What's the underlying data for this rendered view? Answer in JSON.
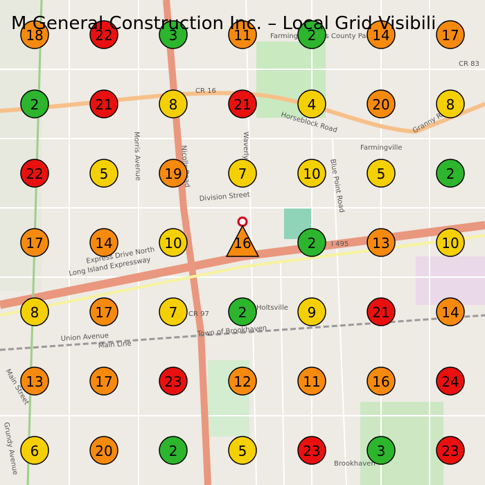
{
  "title": "M General Construction Inc. – Local Grid Visibili",
  "grid": {
    "rows": [
      [
        18,
        22,
        3,
        11,
        2,
        14,
        17
      ],
      [
        2,
        21,
        8,
        21,
        4,
        20,
        8
      ],
      [
        22,
        5,
        19,
        7,
        10,
        5,
        2
      ],
      [
        17,
        14,
        10,
        16,
        2,
        13,
        10
      ],
      [
        8,
        17,
        7,
        2,
        9,
        21,
        14
      ],
      [
        13,
        17,
        23,
        12,
        11,
        16,
        24
      ],
      [
        6,
        20,
        2,
        5,
        23,
        3,
        23
      ]
    ]
  },
  "map_labels": [
    "CR 16",
    "CR 83",
    "CR 97",
    "I 495",
    "Horseblock Road",
    "Farmingville",
    "Farmingville Hills County Park",
    "Division Street",
    "Long Island Expressway",
    "Express Drive North",
    "Union Avenue",
    "Main Line",
    "Town of Brookhaven",
    "Waverly Avenue",
    "Blue Point Road",
    "Nicolls Road",
    "Morris Avenue",
    "Granny Road",
    "Main Street",
    "Grundy Avenue",
    "Holtsville",
    "Brookhaven"
  ]
}
